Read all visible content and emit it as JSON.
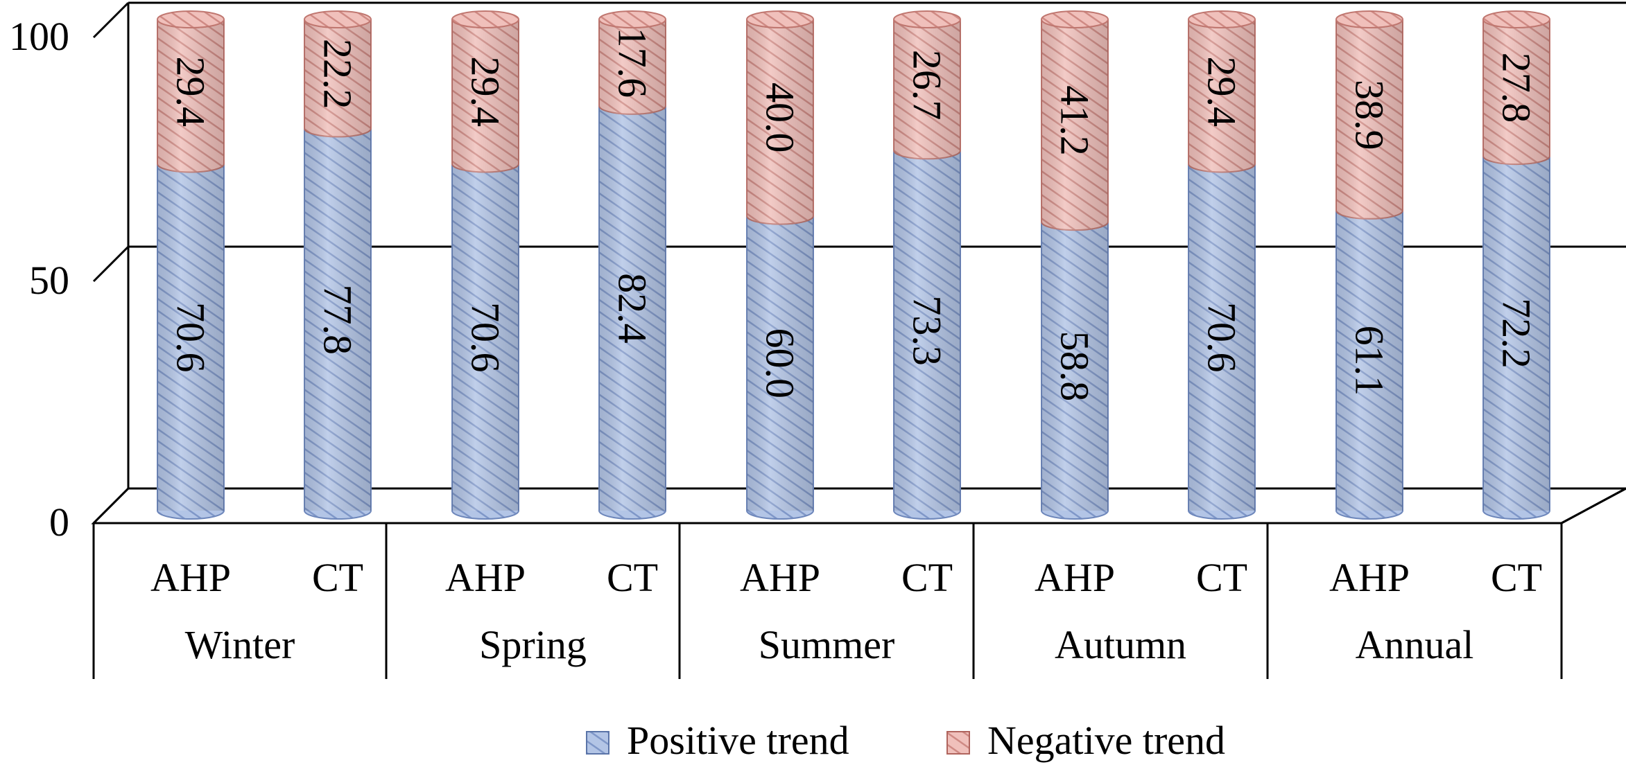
{
  "chart_data": {
    "type": "bar",
    "stacked": true,
    "three_d": true,
    "shape": "cylinder",
    "groups": [
      "Winter",
      "Spring",
      "Summer",
      "Autumn",
      "Annual"
    ],
    "subcategories": [
      "AHP",
      "CT"
    ],
    "categories": [
      "AHP",
      "CT",
      "AHP",
      "CT",
      "AHP",
      "CT",
      "AHP",
      "CT",
      "AHP",
      "CT"
    ],
    "series": [
      {
        "name": "Positive trend",
        "color": "#a9bde0",
        "values": [
          70.6,
          77.8,
          70.6,
          82.4,
          60.0,
          73.3,
          58.8,
          70.6,
          61.1,
          72.2
        ]
      },
      {
        "name": "Negative trend",
        "color": "#e5a9a3",
        "values": [
          29.4,
          22.2,
          29.4,
          17.6,
          40.0,
          26.7,
          41.2,
          29.4,
          38.9,
          27.8
        ]
      }
    ],
    "data_labels": {
      "Positive trend": [
        "70.6",
        "77.8",
        "70.6",
        "82.4",
        "60.0",
        "73.3",
        "58.8",
        "70.6",
        "61.1",
        "72.2"
      ],
      "Negative trend": [
        "29.4",
        "22.2",
        "29.4",
        "17.6",
        "40.0",
        "26.7",
        "41.2",
        "29.4",
        "38.9",
        "27.8"
      ]
    },
    "y_ticks": [
      "0",
      "50",
      "100"
    ],
    "ylim": [
      0,
      100
    ],
    "grid": true,
    "legend_position": "bottom",
    "title": "",
    "xlabel": "",
    "ylabel": ""
  }
}
